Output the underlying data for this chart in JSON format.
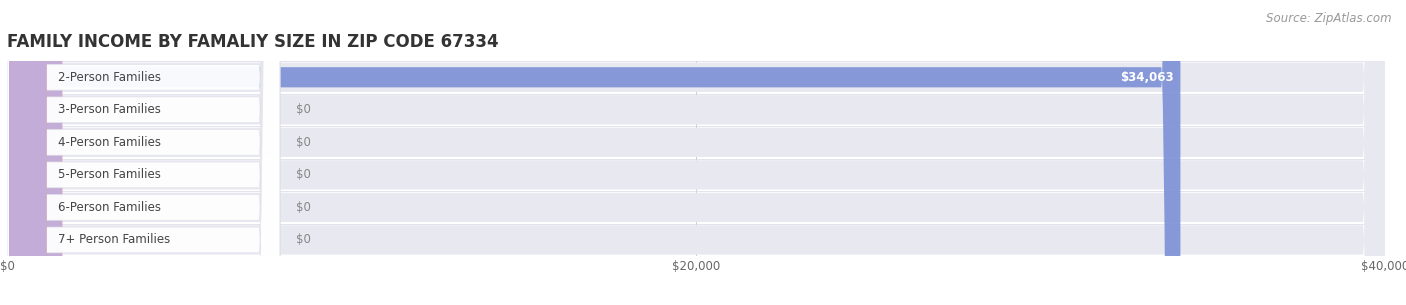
{
  "title": "FAMILY INCOME BY FAMALIY SIZE IN ZIP CODE 67334",
  "source": "Source: ZipAtlas.com",
  "categories": [
    "2-Person Families",
    "3-Person Families",
    "4-Person Families",
    "5-Person Families",
    "6-Person Families",
    "7+ Person Families"
  ],
  "values": [
    34063,
    0,
    0,
    0,
    0,
    0
  ],
  "value_labels": [
    "$34,063",
    "$0",
    "$0",
    "$0",
    "$0",
    "$0"
  ],
  "bar_colors": [
    "#7b8fd6",
    "#f4949c",
    "#f5bf85",
    "#f4a0a0",
    "#a8bfe8",
    "#c8aad8"
  ],
  "xlim_max": 40000,
  "xticks": [
    0,
    20000,
    40000
  ],
  "xtick_labels": [
    "$0",
    "$20,000",
    "$40,000"
  ],
  "title_fontsize": 12,
  "label_fontsize": 8.5,
  "source_fontsize": 8.5,
  "background_color": "#ffffff",
  "bar_height": 0.62,
  "pill_bg_color": "#e8e8f0",
  "row_sep_color": "#d8d8e8",
  "zero_bar_width": 1600
}
